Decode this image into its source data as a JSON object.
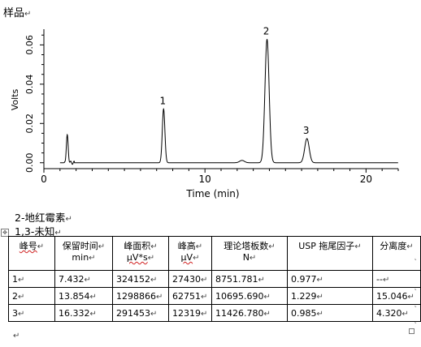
{
  "para_mark": "↵",
  "cell_mark": "↵",
  "row_mark": "˛",
  "anchor_icon": "✥",
  "sample_title": "样品",
  "compound_names": [
    "2-地红霉素",
    "1,3-未知"
  ],
  "table": {
    "headers": [
      {
        "line1": "峰号",
        "line2": "",
        "spell": true
      },
      {
        "line1": "保留时间",
        "line2": "min",
        "spell": false
      },
      {
        "line1": "峰面积",
        "line2": "μV*s",
        "spell": false
      },
      {
        "line1": "峰高",
        "line2": "μV",
        "spell": false
      },
      {
        "line1": "理论塔板数",
        "line2": "N",
        "spell": false
      },
      {
        "line1": "USP 拖尾因子",
        "line2": "",
        "spell": false
      },
      {
        "line1": "分离度",
        "line2": "",
        "spell": false
      }
    ],
    "rows": [
      [
        "1",
        "7.432",
        "324152",
        "27430",
        "8751.781",
        "0.977",
        "--"
      ],
      [
        "2",
        "13.854",
        "1298866",
        "62751",
        "10695.690",
        "1.229",
        "15.046"
      ],
      [
        "3",
        "16.332",
        "291453",
        "12319",
        "11426.780",
        "0.985",
        "4.320"
      ]
    ]
  },
  "chart_data": {
    "type": "line",
    "xlabel": "Time (min)",
    "ylabel": "Volts",
    "xlim": [
      0,
      22
    ],
    "ylim": [
      -0.003,
      0.068
    ],
    "xticks": [
      0,
      10,
      20
    ],
    "yticks": [
      0.0,
      0.02,
      0.04,
      0.06
    ],
    "ytick_labels": [
      "0.00",
      "0.02",
      "0.04",
      "0.06"
    ],
    "grid": false,
    "line_color": "#000000",
    "baseline": 0.0,
    "peaks": [
      {
        "label": "",
        "time": 1.45,
        "height": 0.0135,
        "width": 0.06
      },
      {
        "label": "1",
        "time": 7.432,
        "height": 0.0274,
        "width": 0.08
      },
      {
        "label": "",
        "time": 12.3,
        "height": 0.0012,
        "width": 0.15
      },
      {
        "label": "2",
        "time": 13.854,
        "height": 0.0628,
        "width": 0.13
      },
      {
        "label": "3",
        "time": 16.332,
        "height": 0.0123,
        "width": 0.14
      }
    ]
  }
}
